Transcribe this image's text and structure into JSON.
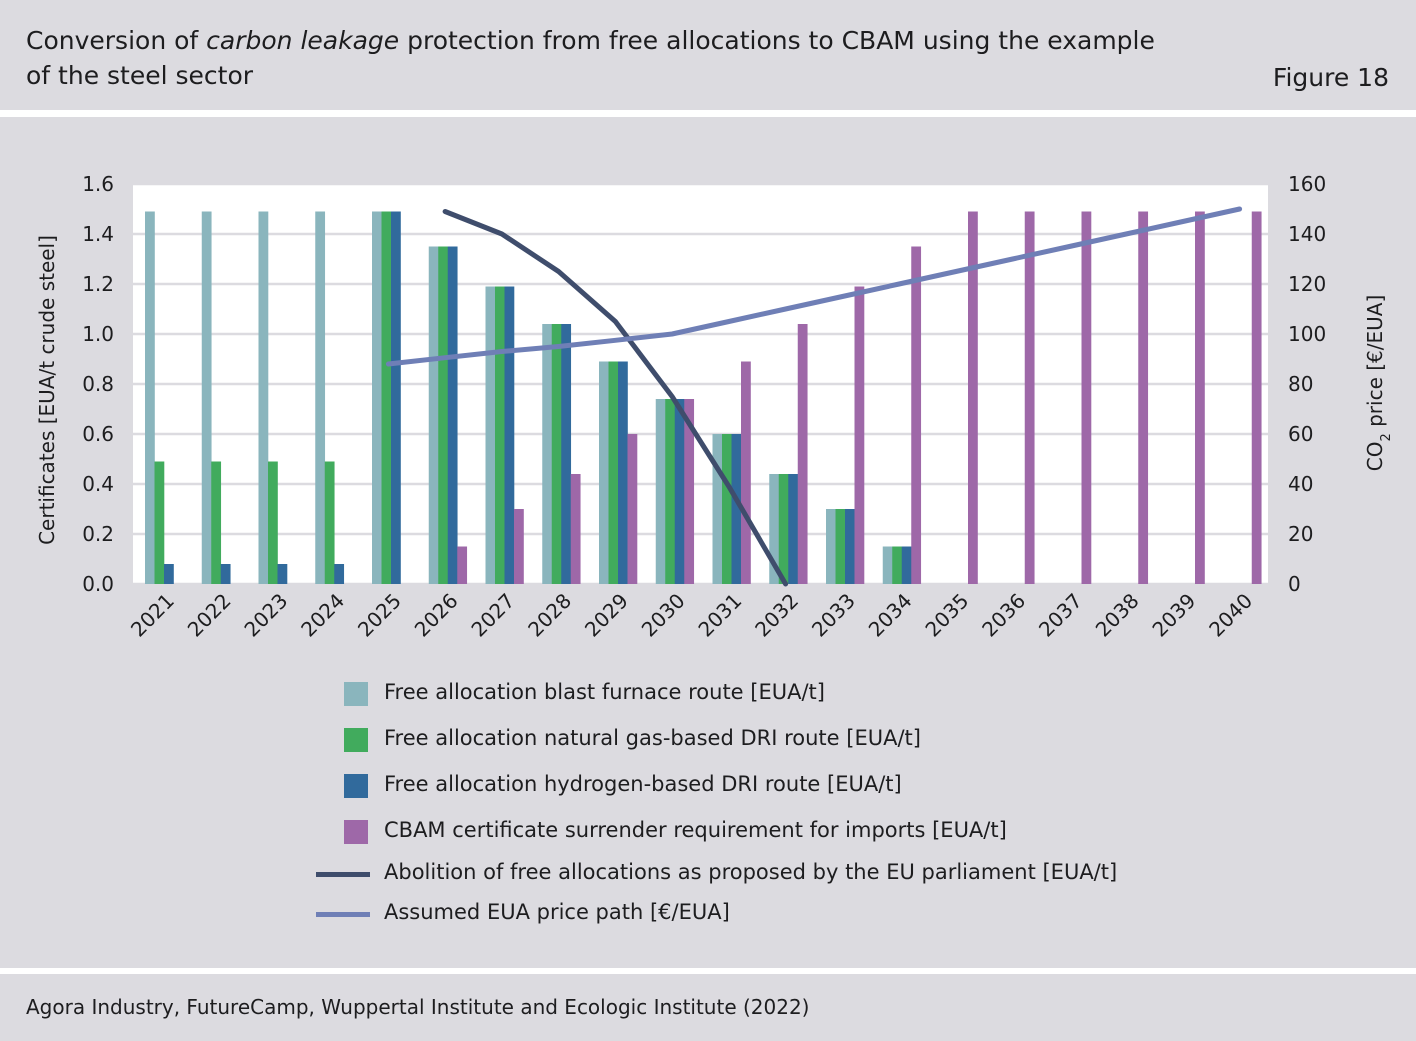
{
  "header": {
    "title_part1": "Conversion of ",
    "title_italic": "carbon leakage",
    "title_part2": " protection from free allocations to CBAM using the example",
    "title_line2": "of the steel sector",
    "figure_label": "Figure 18"
  },
  "source": "Agora Industry, FutureCamp, Wuppertal Institute and Ecologic Institute (2022)",
  "colors": {
    "blast_furnace": "#8ab5bd",
    "natural_gas_dri": "#41ab5d",
    "hydrogen_dri": "#316a9c",
    "cbam": "#9e68a8",
    "abolition": "#3f4d6c",
    "eua_price": "#6f7fb6"
  },
  "chart_data": {
    "type": "bar",
    "categories": [
      "2021",
      "2022",
      "2023",
      "2024",
      "2025",
      "2026",
      "2027",
      "2028",
      "2029",
      "2030",
      "2031",
      "2032",
      "2033",
      "2034",
      "2035",
      "2036",
      "2037",
      "2038",
      "2039",
      "2040"
    ],
    "ylabel": "Certificates [EUA/t crude steel]",
    "ylim": [
      0,
      1.6
    ],
    "yticks": [
      "0.0",
      "0.2",
      "0.4",
      "0.6",
      "0.8",
      "1.0",
      "1.2",
      "1.4",
      "1.6"
    ],
    "y2label_main": "CO",
    "y2label_sub": "2",
    "y2label_rest": " price [€/EUA]",
    "y2lim": [
      0,
      160
    ],
    "y2ticks": [
      "0",
      "20",
      "40",
      "60",
      "80",
      "100",
      "120",
      "140",
      "160"
    ],
    "grid": true,
    "legend_position": "bottom",
    "series": [
      {
        "name": "Free allocation blast furnace route [EUA/t]",
        "kind": "bar",
        "color_key": "blast_furnace",
        "values": [
          1.49,
          1.49,
          1.49,
          1.49,
          1.49,
          1.35,
          1.19,
          1.04,
          0.89,
          0.74,
          0.6,
          0.44,
          0.3,
          0.15,
          null,
          null,
          null,
          null,
          null,
          null
        ]
      },
      {
        "name": "Free allocation natural gas-based DRI route [EUA/t]",
        "kind": "bar",
        "color_key": "natural_gas_dri",
        "values": [
          0.49,
          0.49,
          0.49,
          0.49,
          1.49,
          1.35,
          1.19,
          1.04,
          0.89,
          0.74,
          0.6,
          0.44,
          0.3,
          0.15,
          null,
          null,
          null,
          null,
          null,
          null
        ]
      },
      {
        "name": "Free allocation hydrogen-based DRI route [EUA/t]",
        "kind": "bar",
        "color_key": "hydrogen_dri",
        "values": [
          0.08,
          0.08,
          0.08,
          0.08,
          1.49,
          1.35,
          1.19,
          1.04,
          0.89,
          0.74,
          0.6,
          0.44,
          0.3,
          0.15,
          null,
          null,
          null,
          null,
          null,
          null
        ]
      },
      {
        "name": "CBAM certificate surrender requirement for imports [EUA/t]",
        "kind": "bar",
        "color_key": "cbam",
        "values": [
          null,
          null,
          null,
          null,
          null,
          0.15,
          0.3,
          0.44,
          0.6,
          0.74,
          0.89,
          1.04,
          1.19,
          1.35,
          1.49,
          1.49,
          1.49,
          1.49,
          1.49,
          1.49
        ]
      },
      {
        "name": "Abolition of free allocations as proposed by the EU parliament [EUA/t]",
        "kind": "line",
        "axis": "left",
        "color_key": "abolition",
        "values": [
          null,
          null,
          null,
          null,
          null,
          1.49,
          1.4,
          1.25,
          1.05,
          0.75,
          0.39,
          0.0,
          null,
          null,
          null,
          null,
          null,
          null,
          null,
          null
        ]
      },
      {
        "name": "Assumed EUA price path [€/EUA]",
        "kind": "line",
        "axis": "right",
        "color_key": "eua_price",
        "values": [
          null,
          null,
          null,
          null,
          88,
          90.5,
          93,
          95,
          97.5,
          100,
          105,
          110,
          115,
          120,
          125,
          130,
          135,
          140,
          145,
          150
        ]
      }
    ]
  }
}
